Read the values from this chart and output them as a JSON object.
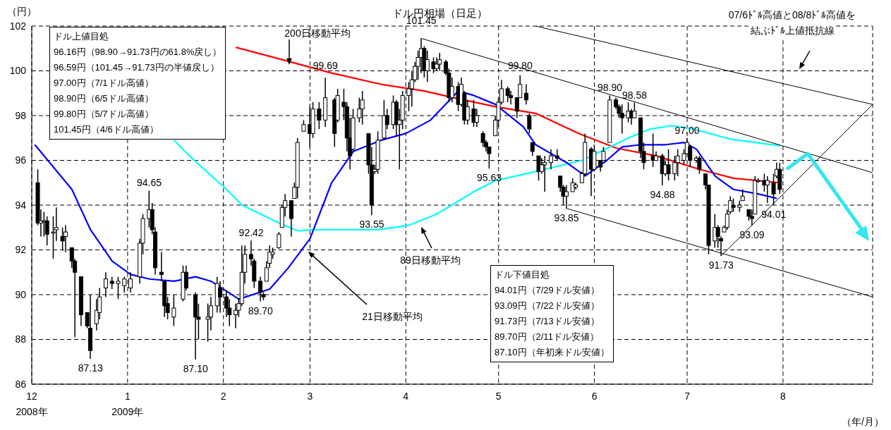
{
  "chart_data": {
    "type": "candlestick",
    "title": "ドル円相場（日足）",
    "xlabel": "（年/月）",
    "ylabel": "（円）",
    "color": "#000000",
    "x": [
      "2008-12-03",
      "2008-12-04",
      "2008-12-05",
      "2008-12-06",
      "2008-12-08",
      "2008-12-09",
      "2008-12-11",
      "2008-12-12",
      "2008-12-14",
      "2008-12-15",
      "2008-12-17",
      "2008-12-19",
      "2008-12-20",
      "2008-12-22",
      "2008-12-23",
      "2008-12-25",
      "2008-12-27",
      "2008-12-29",
      "2008-12-31",
      "2009-01-02",
      "2009-01-05",
      "2009-01-06",
      "2009-01-08",
      "2009-01-09",
      "2009-01-10",
      "2009-01-12",
      "2009-01-13",
      "2009-01-14",
      "2009-01-16",
      "2009-01-19",
      "2009-01-20",
      "2009-01-23",
      "2009-01-24",
      "2009-01-27",
      "2009-01-28",
      "2009-01-30",
      "2009-01-31",
      "2009-02-02",
      "2009-02-03",
      "2009-02-05",
      "2009-02-06",
      "2009-02-07",
      "2009-02-08",
      "2009-02-10",
      "2009-02-11",
      "2009-02-13",
      "2009-02-14",
      "2009-02-15",
      "2009-02-16",
      "2009-02-17",
      "2009-02-19",
      "2009-02-20",
      "2009-02-21",
      "2009-02-23",
      "2009-02-24",
      "2009-02-25",
      "2009-02-27",
      "2009-03-01",
      "2009-03-02",
      "2009-03-04",
      "2009-03-06",
      "2009-03-09",
      "2009-03-10",
      "2009-03-12",
      "2009-03-13",
      "2009-03-14",
      "2009-03-15",
      "2009-03-17",
      "2009-03-18",
      "2009-03-20",
      "2009-03-21",
      "2009-03-22",
      "2009-03-23",
      "2009-03-25",
      "2009-03-26",
      "2009-03-28",
      "2009-03-29",
      "2009-03-30",
      "2009-03-31",
      "2009-04-02",
      "2009-04-03",
      "2009-04-04",
      "2009-04-05",
      "2009-04-06",
      "2009-04-07",
      "2009-04-08",
      "2009-04-10",
      "2009-04-11",
      "2009-04-12",
      "2009-04-14",
      "2009-04-15",
      "2009-04-16",
      "2009-04-18",
      "2009-04-19",
      "2009-04-20",
      "2009-04-21",
      "2009-04-23",
      "2009-04-24",
      "2009-04-26",
      "2009-04-27",
      "2009-04-28",
      "2009-04-30",
      "2009-05-01",
      "2009-05-02",
      "2009-05-04",
      "2009-05-05",
      "2009-05-07",
      "2009-05-08",
      "2009-05-10",
      "2009-05-11",
      "2009-05-12",
      "2009-05-14",
      "2009-05-15",
      "2009-05-16",
      "2009-05-18",
      "2009-05-20",
      "2009-05-21",
      "2009-05-22",
      "2009-05-23",
      "2009-05-25",
      "2009-05-26",
      "2009-05-28",
      "2009-05-29",
      "2009-05-31",
      "2009-06-01",
      "2009-06-03",
      "2009-06-04",
      "2009-06-06",
      "2009-06-08",
      "2009-06-09",
      "2009-06-10",
      "2009-06-12",
      "2009-06-13",
      "2009-06-14",
      "2009-06-16",
      "2009-06-17",
      "2009-06-20",
      "2009-06-21",
      "2009-06-23",
      "2009-06-24",
      "2009-06-25",
      "2009-06-27",
      "2009-06-28",
      "2009-06-30",
      "2009-07-01",
      "2009-07-02",
      "2009-07-04",
      "2009-07-05",
      "2009-07-07",
      "2009-07-08",
      "2009-07-10",
      "2009-07-11",
      "2009-07-12",
      "2009-07-13",
      "2009-07-14",
      "2009-07-15",
      "2009-07-16",
      "2009-07-18",
      "2009-07-19",
      "2009-07-21",
      "2009-07-22",
      "2009-07-23",
      "2009-07-24",
      "2009-07-26",
      "2009-07-27",
      "2009-07-29",
      "2009-07-30",
      "2009-07-31"
    ],
    "ohlc": [
      [
        95.0,
        95.6,
        93.1,
        93.2
      ],
      [
        93.2,
        93.8,
        92.6,
        93.3
      ],
      [
        93.3,
        93.7,
        92.6,
        93.3
      ],
      [
        93.3,
        93.5,
        92.2,
        92.7
      ],
      [
        92.8,
        93.5,
        91.6,
        92.8
      ],
      [
        92.9,
        93.9,
        92.4,
        93.0
      ],
      [
        92.6,
        93.0,
        92.0,
        92.4
      ],
      [
        92.6,
        93.1,
        91.9,
        92.8
      ],
      [
        92.1,
        92.1,
        91.2,
        91.5
      ],
      [
        91.5,
        91.6,
        88.1,
        91.0
      ],
      [
        90.8,
        90.8,
        88.6,
        89.1
      ],
      [
        89.2,
        89.2,
        88.5,
        88.6
      ],
      [
        88.5,
        90.0,
        87.13,
        87.5
      ],
      [
        88.7,
        89.8,
        88.4,
        89.3
      ],
      [
        89.2,
        90.3,
        88.9,
        89.9
      ],
      [
        90.3,
        91.0,
        89.9,
        90.7
      ],
      [
        90.6,
        90.8,
        90.25,
        90.5
      ],
      [
        90.5,
        90.8,
        89.8,
        90.6
      ],
      [
        90.4,
        90.8,
        90.1,
        90.7
      ],
      [
        90.3,
        91.0,
        90.1,
        90.7
      ],
      [
        90.8,
        92.5,
        90.5,
        92.3
      ],
      [
        92.3,
        93.6,
        91.8,
        93.4
      ],
      [
        93.4,
        94.65,
        93.0,
        93.8
      ],
      [
        93.8,
        94.1,
        92.7,
        92.9
      ],
      [
        92.8,
        93.0,
        90.9,
        91.2
      ],
      [
        91.0,
        91.9,
        90.6,
        90.9
      ],
      [
        90.6,
        90.6,
        89.0,
        89.5
      ],
      [
        89.6,
        89.9,
        88.9,
        89.2
      ],
      [
        89.0,
        90.0,
        88.6,
        89.4
      ],
      [
        89.8,
        91.3,
        89.7,
        91.0
      ],
      [
        91.0,
        91.3,
        90.2,
        90.3
      ],
      [
        90.0,
        90.1,
        87.1,
        89.0
      ],
      [
        89.0,
        89.6,
        88.0,
        88.9
      ],
      [
        88.9,
        89.6,
        87.9,
        89.0
      ],
      [
        89.0,
        89.9,
        88.4,
        89.5
      ],
      [
        89.5,
        90.8,
        89.2,
        90.5
      ],
      [
        90.3,
        90.6,
        89.2,
        89.9
      ],
      [
        89.9,
        90.2,
        89.0,
        89.4
      ],
      [
        89.4,
        89.8,
        88.6,
        89.1
      ],
      [
        89.1,
        89.6,
        88.5,
        89.3
      ],
      [
        89.3,
        89.8,
        89.0,
        89.6
      ],
      [
        89.6,
        92.2,
        89.5,
        91.0
      ],
      [
        91.0,
        92.2,
        90.5,
        91.8
      ],
      [
        91.8,
        92.42,
        91.3,
        91.6
      ],
      [
        91.5,
        91.6,
        90.3,
        90.6
      ],
      [
        90.6,
        90.8,
        89.7,
        90.1
      ],
      [
        90.0,
        90.1,
        89.75,
        89.9
      ],
      [
        90.6,
        91.5,
        90.6,
        91.2
      ],
      [
        91.4,
        92.2,
        91.2,
        91.9
      ],
      [
        91.8,
        92.1,
        91.6,
        91.9
      ],
      [
        92.1,
        92.8,
        92.05,
        92.7
      ],
      [
        93.0,
        94.0,
        93.0,
        93.9
      ],
      [
        93.9,
        94.5,
        93.5,
        94.2
      ],
      [
        94.2,
        94.2,
        92.6,
        93.4
      ],
      [
        94.3,
        95.0,
        94.3,
        94.8
      ],
      [
        94.8,
        97.0,
        94.3,
        96.8
      ],
      [
        97.3,
        97.8,
        97.3,
        97.6
      ],
      [
        97.6,
        98.4,
        96.6,
        97.2
      ],
      [
        97.2,
        98.6,
        97.0,
        98.3
      ],
      [
        98.3,
        98.6,
        97.4,
        97.8
      ],
      [
        97.8,
        99.69,
        97.5,
        98.8
      ],
      [
        98.7,
        98.8,
        96.6,
        97.2
      ],
      [
        97.8,
        99.2,
        97.7,
        98.9
      ],
      [
        98.6,
        99.2,
        97.8,
        98.4
      ],
      [
        98.4,
        98.6,
        96.4,
        97.0
      ],
      [
        97.0,
        97.9,
        95.6,
        96.2
      ],
      [
        96.5,
        98.3,
        96.4,
        97.9
      ],
      [
        97.9,
        98.8,
        97.7,
        98.3
      ],
      [
        98.3,
        99.1,
        97.6,
        98.7
      ],
      [
        97.2,
        97.2,
        95.4,
        95.8
      ],
      [
        95.8,
        96.6,
        93.55,
        94.0
      ],
      [
        95.5,
        95.8,
        95.4,
        95.6
      ],
      [
        95.6,
        97.3,
        95.4,
        96.9
      ],
      [
        97.0,
        98.7,
        96.9,
        98.0
      ],
      [
        98.0,
        98.3,
        97.4,
        97.6
      ],
      [
        97.6,
        98.9,
        97.4,
        98.6
      ],
      [
        98.6,
        98.7,
        97.1,
        97.6
      ],
      [
        97.6,
        98.3,
        95.6,
        97.8
      ],
      [
        97.8,
        99.1,
        97.4,
        98.9
      ],
      [
        98.9,
        99.5,
        98.2,
        99.2
      ],
      [
        99.2,
        100.0,
        98.4,
        99.6
      ],
      [
        99.6,
        100.4,
        99.5,
        100.2
      ],
      [
        100.2,
        100.9,
        99.6,
        100.6
      ],
      [
        100.6,
        101.45,
        99.9,
        101.0
      ],
      [
        101.0,
        101.1,
        99.7,
        100.0
      ],
      [
        100.0,
        100.9,
        99.5,
        100.5
      ],
      [
        100.4,
        100.6,
        99.9,
        100.1
      ],
      [
        100.1,
        100.6,
        100.0,
        100.3
      ],
      [
        100.3,
        100.8,
        100.0,
        100.5
      ],
      [
        100.4,
        100.5,
        99.8,
        99.9
      ],
      [
        99.9,
        100.1,
        98.6,
        98.8
      ],
      [
        98.8,
        99.7,
        98.6,
        99.3
      ],
      [
        99.3,
        99.5,
        98.2,
        98.5
      ],
      [
        98.5,
        99.7,
        98.4,
        99.4
      ],
      [
        99.0,
        99.1,
        97.6,
        97.8
      ],
      [
        97.8,
        98.7,
        97.6,
        98.4
      ],
      [
        98.3,
        98.7,
        97.5,
        97.7
      ],
      [
        97.7,
        98.3,
        97.5,
        98.0
      ],
      [
        97.2,
        97.3,
        96.6,
        96.8
      ],
      [
        96.8,
        96.9,
        96.4,
        96.6
      ],
      [
        96.6,
        96.6,
        95.63,
        96.3
      ],
      [
        97.1,
        98.0,
        97.1,
        97.8
      ],
      [
        97.8,
        98.8,
        97.5,
        98.6
      ],
      [
        98.6,
        99.6,
        98.5,
        99.2
      ],
      [
        99.2,
        99.3,
        98.6,
        98.9
      ],
      [
        98.9,
        99.1,
        98.5,
        98.8
      ],
      [
        98.8,
        98.8,
        97.9,
        98.2
      ],
      [
        98.8,
        99.8,
        98.8,
        99.4
      ],
      [
        99.0,
        99.4,
        98.5,
        98.7
      ],
      [
        98.0,
        98.1,
        97.2,
        97.4
      ],
      [
        96.8,
        96.8,
        96.2,
        96.4
      ],
      [
        96.2,
        96.2,
        95.1,
        95.5
      ],
      [
        95.5,
        96.1,
        95.4,
        95.8
      ],
      [
        95.8,
        96.2,
        94.6,
        95.9
      ],
      [
        95.9,
        96.5,
        95.6,
        96.2
      ],
      [
        96.2,
        96.5,
        96.0,
        96.1
      ],
      [
        95.3,
        95.3,
        94.6,
        94.8
      ],
      [
        94.8,
        94.9,
        94.0,
        94.4
      ],
      [
        94.4,
        94.9,
        93.85,
        94.6
      ],
      [
        94.6,
        95.2,
        94.6,
        95.0
      ],
      [
        94.8,
        95.0,
        94.7,
        94.9
      ],
      [
        95.0,
        95.5,
        95.0,
        95.4
      ],
      [
        95.4,
        97.2,
        95.3,
        96.8
      ],
      [
        96.5,
        96.6,
        94.4,
        95.6
      ],
      [
        95.6,
        96.7,
        95.5,
        96.4
      ],
      [
        96.0,
        96.0,
        95.5,
        95.7
      ],
      [
        96.0,
        96.6,
        96.0,
        96.4
      ],
      [
        96.8,
        98.9,
        96.8,
        98.7
      ],
      [
        98.7,
        98.8,
        98.3,
        98.4
      ],
      [
        98.4,
        98.5,
        97.9,
        98.1
      ],
      [
        98.1,
        98.5,
        97.2,
        97.9
      ],
      [
        97.9,
        98.6,
        97.7,
        98.2
      ],
      [
        98.2,
        98.3,
        97.6,
        97.9
      ],
      [
        97.9,
        98.58,
        97.9,
        98.2
      ],
      [
        97.9,
        97.9,
        96.1,
        96.4
      ],
      [
        96.4,
        96.8,
        95.6,
        95.9
      ],
      [
        96.2,
        97.2,
        95.7,
        96.0
      ],
      [
        96.0,
        96.4,
        96.0,
        96.2
      ],
      [
        96.2,
        96.3,
        94.88,
        95.4
      ],
      [
        95.4,
        96.0,
        95.3,
        95.8
      ],
      [
        95.8,
        96.5,
        95.1,
        95.4
      ],
      [
        95.4,
        96.2,
        95.1,
        95.9
      ],
      [
        95.9,
        96.5,
        95.3,
        96.2
      ],
      [
        96.0,
        96.5,
        95.8,
        96.3
      ],
      [
        96.3,
        97.0,
        96.3,
        96.8
      ],
      [
        96.6,
        96.7,
        95.7,
        96.0
      ],
      [
        96.0,
        96.2,
        95.9,
        96.1
      ],
      [
        96.1,
        96.2,
        95.4,
        95.6
      ],
      [
        95.4,
        95.4,
        94.7,
        94.9
      ],
      [
        94.9,
        94.9,
        91.8,
        92.2
      ],
      [
        92.4,
        93.6,
        92.1,
        93.0
      ],
      [
        93.0,
        93.1,
        92.1,
        92.6
      ],
      [
        92.5,
        92.6,
        91.73,
        92.4
      ],
      [
        92.8,
        93.1,
        92.8,
        93.0
      ],
      [
        93.0,
        93.8,
        92.9,
        93.6
      ],
      [
        93.7,
        94.4,
        93.6,
        94.2
      ],
      [
        94.0,
        94.3,
        93.7,
        93.9
      ],
      [
        93.9,
        94.2,
        93.7,
        94.0
      ],
      [
        94.2,
        94.7,
        94.2,
        94.4
      ],
      [
        93.8,
        93.8,
        93.3,
        93.5
      ],
      [
        93.5,
        93.8,
        93.09,
        93.4
      ],
      [
        93.6,
        95.3,
        93.6,
        95.1
      ],
      [
        95.1,
        95.2,
        95.0,
        95.1
      ],
      [
        95.1,
        95.4,
        94.6,
        94.9
      ],
      [
        94.9,
        95.3,
        94.1,
        95.1
      ],
      [
        95.0,
        95.4,
        94.01,
        94.5
      ],
      [
        95.3,
        95.9,
        95.2,
        95.6
      ],
      [
        95.6,
        95.9,
        94.5,
        94.7
      ]
    ],
    "series": [
      {
        "name": "200日移動平均",
        "type": "line",
        "color": "#ff0000",
        "x": [
          "2009-02-05",
          "2009-02-20",
          "2009-03-08",
          "2009-03-24",
          "2009-04-07",
          "2009-04-18",
          "2009-04-30",
          "2009-05-13",
          "2009-05-27",
          "2009-06-08",
          "2009-06-21",
          "2009-07-05",
          "2009-07-16",
          "2009-07-31"
        ],
        "values": [
          101.05,
          100.5,
          99.9,
          99.4,
          99.1,
          98.75,
          98.4,
          98.1,
          97.2,
          96.55,
          96.2,
          95.6,
          95.2,
          95.0
        ]
      },
      {
        "name": "89日移動平均",
        "type": "line",
        "color": "#00ffff",
        "x": [
          "2009-01-16",
          "2009-01-21",
          "2009-02-02",
          "2009-02-07",
          "2009-02-19",
          "2009-02-25",
          "2009-03-02",
          "2009-03-13",
          "2009-03-23",
          "2009-04-02",
          "2009-04-11",
          "2009-04-23",
          "2009-04-30",
          "2009-05-13",
          "2009-05-28",
          "2009-06-12",
          "2009-06-19",
          "2009-06-26",
          "2009-07-03",
          "2009-07-15",
          "2009-07-31"
        ],
        "values": [
          96.9,
          96.2,
          94.7,
          94.0,
          93.2,
          92.85,
          92.9,
          92.9,
          92.9,
          93.1,
          93.6,
          94.6,
          95.1,
          95.5,
          96.0,
          97.0,
          97.4,
          97.55,
          97.4,
          96.95,
          96.65
        ]
      },
      {
        "name": "21日移動平均",
        "type": "line",
        "color": "#0000ff",
        "x": [
          "2008-12-02",
          "2008-12-14",
          "2008-12-20",
          "2008-12-27",
          "2009-01-02",
          "2009-01-08",
          "2009-01-16",
          "2009-01-23",
          "2009-01-28",
          "2009-02-06",
          "2009-02-16",
          "2009-02-22",
          "2009-03-01",
          "2009-03-08",
          "2009-03-15",
          "2009-03-24",
          "2009-04-01",
          "2009-04-09",
          "2009-04-18",
          "2009-04-23",
          "2009-04-30",
          "2009-05-09",
          "2009-05-13",
          "2009-05-23",
          "2009-05-29",
          "2009-06-05",
          "2009-06-10",
          "2009-06-16",
          "2009-06-24",
          "2009-06-30",
          "2009-07-04",
          "2009-07-10",
          "2009-07-16",
          "2009-07-24",
          "2009-07-30"
        ],
        "values": [
          96.7,
          94.7,
          92.9,
          91.5,
          90.9,
          90.7,
          90.6,
          90.8,
          90.6,
          89.8,
          90.25,
          91.2,
          92.5,
          95.0,
          96.4,
          96.9,
          97.2,
          97.8,
          99.1,
          98.9,
          98.5,
          97.5,
          96.7,
          95.9,
          95.3,
          96.0,
          96.6,
          96.7,
          96.7,
          96.8,
          96.5,
          95.3,
          94.7,
          94.5,
          94.3
        ]
      },
      {
        "type": "line",
        "color": "#000000",
        "x": [
          "2009-04-06",
          "2009-08-30"
        ],
        "values": [
          101.45,
          95.45
        ]
      },
      {
        "type": "line",
        "color": "#000000",
        "x": [
          "2009-05-13",
          "2009-08-30"
        ],
        "values": [
          102.0,
          98.5
        ]
      },
      {
        "type": "line",
        "color": "#000000",
        "x": [
          "2009-05-23",
          "2009-08-30"
        ],
        "values": [
          93.85,
          89.9
        ]
      },
      {
        "type": "line",
        "color": "#000000",
        "x": [
          "2009-07-12",
          "2009-08-30"
        ],
        "values": [
          91.73,
          98.5
        ]
      }
    ],
    "xlim": [
      "2008-12-01",
      "2009-08-30"
    ],
    "xticks": [
      {
        "value": "2008-12-01",
        "label": "12\n2008年"
      },
      {
        "value": "2009-01-01",
        "label": "1\n2009年"
      },
      {
        "value": "2009-02-01",
        "label": "2"
      },
      {
        "value": "2009-03-01",
        "label": "3"
      },
      {
        "value": "2009-04-01",
        "label": "4"
      },
      {
        "value": "2009-05-01",
        "label": "5"
      },
      {
        "value": "2009-06-01",
        "label": "6"
      },
      {
        "value": "2009-07-01",
        "label": "7"
      },
      {
        "value": "2009-08-01",
        "label": "8"
      }
    ],
    "ylim": [
      86,
      102
    ],
    "yticks": [
      86,
      88,
      90,
      92,
      94,
      96,
      98,
      100,
      102
    ],
    "grid": true,
    "annotations": [
      "ドル上値目処\n96.16円（98.90→91.73円の61.8%戻し）\n96.59円（101.45→91.73円の半値戻し）\n97.00円（7/1ドル高値）\n98.90円（6/5ドル高値）\n99.80円（5/7ドル高値）\n101.45円（4/6ドル高値）",
      "ドル下値目処\n94.01円（7/29ドル安値）\n93.09円（7/22ドル安値）\n91.73円（7/13ドル安値）\n89.70円（2/11ドル安値）\n87.10円（年初来ドル安値）",
      "07/6ﾄﾞﾙ高値と08/8ﾄﾞﾙ高値を",
      "結ぶﾄﾞﾙ上値抵抗線",
      {
        "text": "94.65",
        "x": "2009-01-08",
        "y": 94.65
      },
      {
        "text": "87.13",
        "x": "2008-12-20",
        "y": 87.13
      },
      {
        "text": "87.10",
        "x": "2009-01-23",
        "y": 87.1
      },
      {
        "text": "92.42",
        "x": "2009-02-10",
        "y": 92.42
      },
      {
        "text": "89.70",
        "x": "2009-02-13",
        "y": 89.7
      },
      {
        "text": "99.69",
        "x": "2009-03-06",
        "y": 99.69
      },
      {
        "text": "93.55",
        "x": "2009-03-21",
        "y": 93.55
      },
      {
        "text": "101.45",
        "x": "2009-04-06",
        "y": 101.45
      },
      {
        "text": "95.63",
        "x": "2009-04-28",
        "y": 95.63
      },
      {
        "text": "99.80",
        "x": "2009-05-08",
        "y": 99.8
      },
      {
        "text": "93.85",
        "x": "2009-05-23",
        "y": 93.85
      },
      {
        "text": "98.90",
        "x": "2009-06-06",
        "y": 98.9
      },
      {
        "text": "98.58",
        "x": "2009-06-14",
        "y": 98.58
      },
      {
        "text": "97.00",
        "x": "2009-07-01",
        "y": 97.0
      },
      {
        "text": "94.88",
        "x": "2009-06-23",
        "y": 94.88
      },
      {
        "text": "91.73",
        "x": "2009-07-12",
        "y": 91.73
      },
      {
        "text": "93.09",
        "x": "2009-07-22",
        "y": 93.09
      },
      {
        "text": "94.01",
        "x": "2009-07-29",
        "y": 94.01
      }
    ]
  }
}
